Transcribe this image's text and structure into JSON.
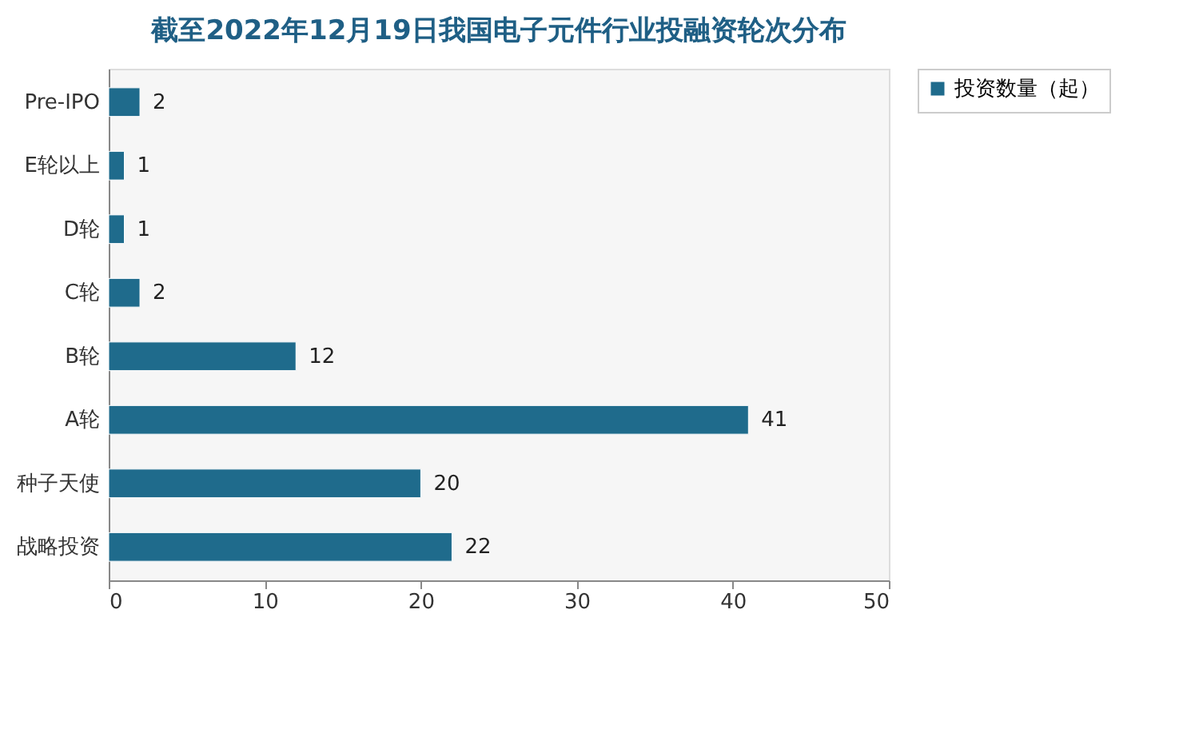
{
  "chart_data": {
    "type": "bar",
    "orientation": "horizontal",
    "title": "截至2022年12月19日我国电子元件行业投融资轮次分布",
    "categories": [
      "Pre-IPO",
      "E轮以上",
      "D轮",
      "C轮",
      "B轮",
      "A轮",
      "种子天使",
      "战略投资"
    ],
    "series": [
      {
        "name": "投资数量（起）",
        "color": "#1f6b8c",
        "values": [
          2,
          1,
          1,
          2,
          12,
          41,
          20,
          22
        ]
      }
    ],
    "xlim": [
      0,
      50
    ],
    "xticks": [
      0,
      10,
      20,
      30,
      40,
      50
    ],
    "data_labels": true,
    "legend": "right",
    "grid": false
  }
}
